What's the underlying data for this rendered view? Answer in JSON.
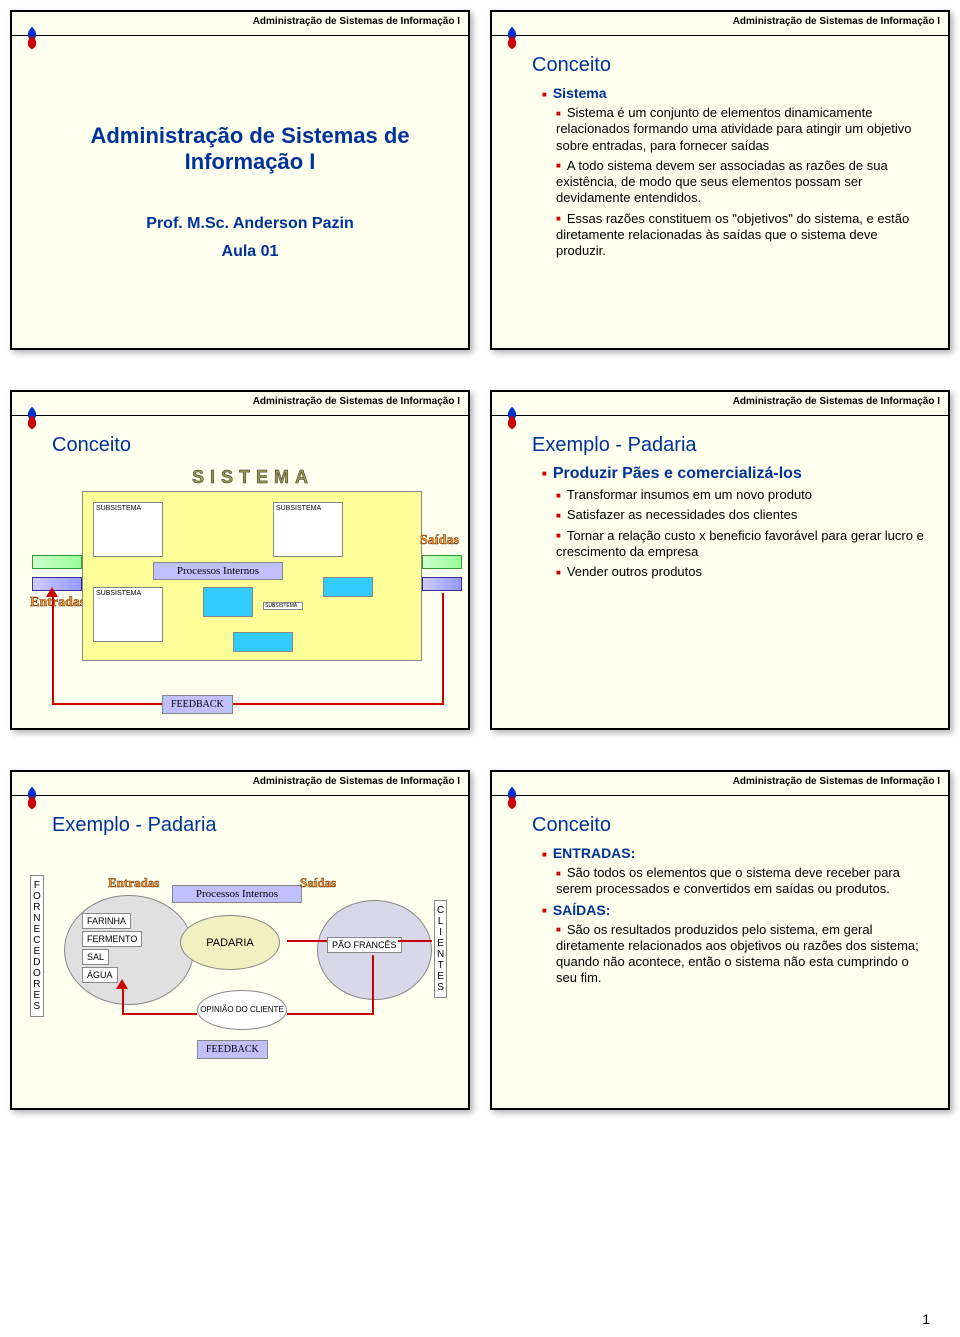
{
  "header_title": "Administração de Sistemas de Informação I",
  "slide1": {
    "title": "Administração de Sistemas de Informação I",
    "prof": "Prof. M.Sc. Anderson Pazin",
    "aula": "Aula 01"
  },
  "slide2": {
    "title": "Conceito",
    "heading": "Sistema",
    "bullets": [
      "Sistema é um conjunto de elementos dinamicamente relacionados formando uma atividade para atingir um objetivo sobre entradas, para fornecer saídas",
      "A todo sistema devem ser associadas as razões de sua existência, de modo que seus elementos possam ser devidamente entendidos.",
      "Essas razões constituem os \"objetivos\" do sistema, e estão diretamente relacionadas às saídas que o sistema deve produzir."
    ]
  },
  "slide3": {
    "title": "Conceito",
    "sistema": "SISTEMA",
    "subsistema": "SUBSISTEMA",
    "proc": "Processos Internos",
    "entradas": "Entradas",
    "saidas": "Saídas",
    "feedback": "FEEDBACK"
  },
  "slide4": {
    "title": "Exemplo - Padaria",
    "heading": "Produzir Pães e comercializá-los",
    "bullets": [
      "Transformar insumos em um novo produto",
      "Satisfazer as necessidades dos clientes",
      "Tornar a relação custo x beneficio favorável para gerar lucro e crescimento da empresa",
      "Vender outros produtos"
    ]
  },
  "slide5": {
    "title": "Exemplo - Padaria",
    "fornecedores": "FORNECEDORES",
    "clientes": "CLIENTES",
    "entradas": "Entradas",
    "saidas": "Saídas",
    "proc": "Processos Internos",
    "padaria": "PADARIA",
    "opiniao": "OPINIÃO DO CLIENTE",
    "feedback": "FEEDBACK",
    "insumos": [
      "FARINHA",
      "FERMENTO",
      "SAL",
      "ÁGUA"
    ],
    "output": "PÃO FRANCÊS"
  },
  "slide6": {
    "title": "Conceito",
    "h1": "ENTRADAS:",
    "b1": "São todos os elementos que o sistema deve receber para serem processados e convertidos em saídas ou produtos.",
    "h2": "SAÍDAS:",
    "b2": "São os resultados produzidos pelo sistema, em geral diretamente relacionados aos objetivos ou razões dos sistema; quando não acontece, então o sistema não esta cumprindo o seu fim."
  },
  "page_num": "1",
  "colors": {
    "accent_blue": "#003399",
    "accent_red": "#cc0000",
    "bg_slide": "#fffff0",
    "yellow": "#ffff99",
    "cyan": "#33ccff",
    "lavender": "#c0c0ff",
    "orange": "#ff9933"
  }
}
